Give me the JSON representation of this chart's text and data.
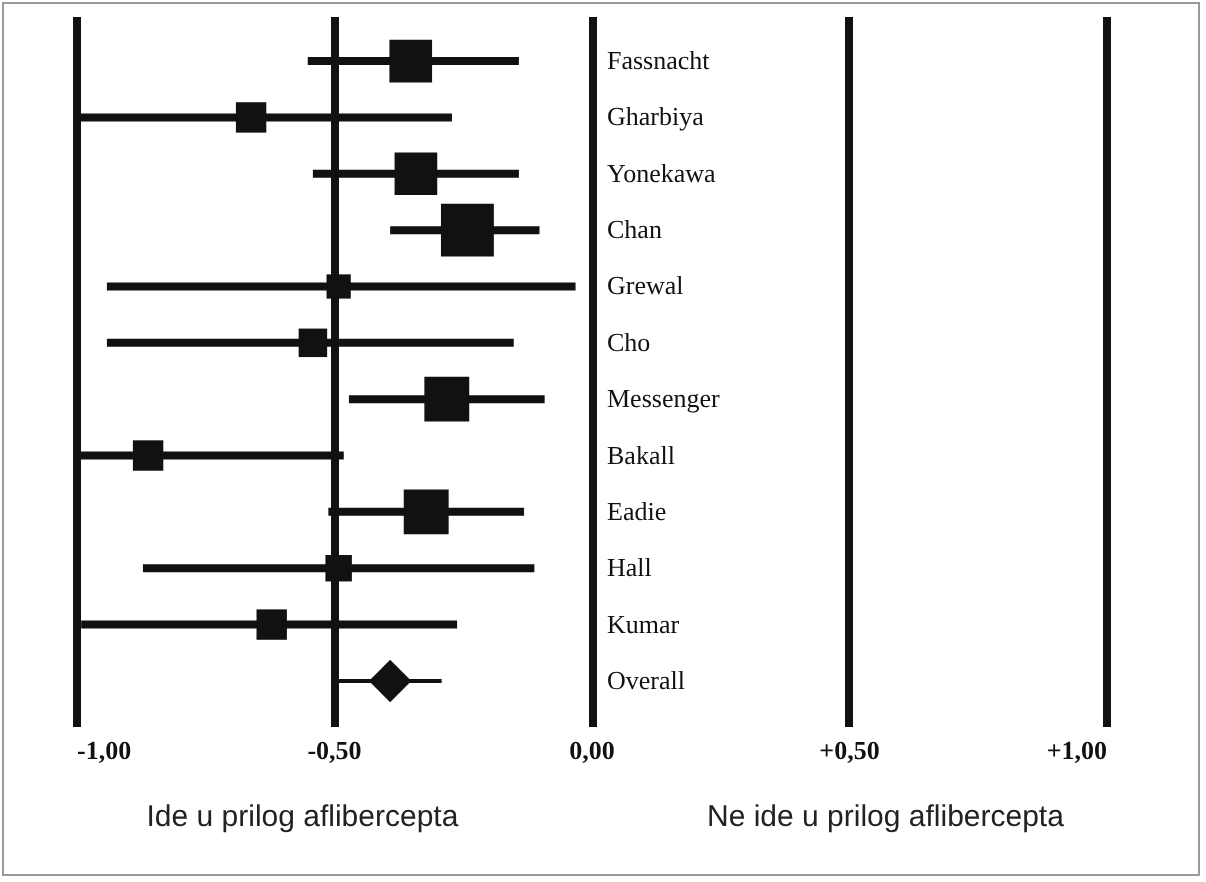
{
  "chart_data": {
    "type": "bubble",
    "orientation": "horizontal",
    "marker": "square",
    "grid": "x",
    "categories": [
      "Fassnacht",
      "Gharbiya",
      "Yonekawa",
      "Chan",
      "Grewal",
      "Cho",
      "Messenger",
      "Bakall",
      "Eadie",
      "Hall",
      "Kumar",
      "Overall"
    ],
    "xlim": [
      -1,
      1
    ],
    "xticks": [
      {
        "value": -1,
        "label": "-1,00"
      },
      {
        "value": -0.5,
        "label": "-0,50"
      },
      {
        "value": 0,
        "label": "0,00"
      },
      {
        "value": 0.5,
        "label": "+0,50"
      },
      {
        "value": 1,
        "label": "+1,00"
      }
    ],
    "series": [
      {
        "color": "#111111",
        "values": [
          -0.35,
          -0.66,
          -0.34,
          -0.24,
          -0.49,
          -0.54,
          -0.28,
          -0.86,
          -0.32,
          -0.49,
          -0.62,
          null
        ],
        "errors": [
          [
            -0.55,
            -0.14
          ],
          [
            -1.0,
            -0.27
          ],
          [
            -0.54,
            -0.14
          ],
          [
            -0.39,
            -0.1
          ],
          [
            -0.94,
            -0.03
          ],
          [
            -0.94,
            -0.15
          ],
          [
            -0.47,
            -0.09
          ],
          [
            -1.0,
            -0.48
          ],
          [
            -0.51,
            -0.13
          ],
          [
            -0.87,
            -0.11
          ],
          [
            -0.99,
            -0.26
          ],
          null
        ],
        "sizes": [
          0.65,
          0.33,
          0.65,
          1,
          0.21,
          0.29,
          0.72,
          0.33,
          0.72,
          0.25,
          0.33,
          null
        ]
      },
      {
        "type": "scatter",
        "marker": "diamond",
        "color": "#111111",
        "values": [
          null,
          null,
          null,
          null,
          null,
          null,
          null,
          null,
          null,
          null,
          null,
          -0.39
        ],
        "errors": [
          null,
          null,
          null,
          null,
          null,
          null,
          null,
          null,
          null,
          null,
          null,
          [
            -0.49,
            -0.29
          ]
        ]
      }
    ],
    "annotations": [
      "Ide u prilog aflibercepta",
      "Ne ide u prilog aflibercepta"
    ]
  }
}
